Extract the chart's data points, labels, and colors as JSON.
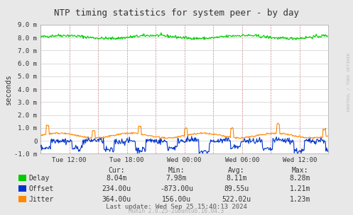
{
  "title": "NTP timing statistics for system peer - by day",
  "ylabel": "seconds",
  "background_color": "#e8e8e8",
  "plot_bg_color": "#ffffff",
  "ylim": [
    -1.0,
    9.0
  ],
  "yticks": [
    -1.0,
    0.0,
    1.0,
    2.0,
    3.0,
    4.0,
    5.0,
    6.0,
    7.0,
    8.0,
    9.0
  ],
  "ytick_labels": [
    "-1.0 m",
    "0",
    "1.0 m",
    "2.0 m",
    "3.0 m",
    "4.0 m",
    "5.0 m",
    "6.0 m",
    "7.0 m",
    "8.0 m",
    "9.0 m"
  ],
  "xtick_labels": [
    "Tue 12:00",
    "Tue 18:00",
    "Wed 00:00",
    "Wed 06:00",
    "Wed 12:00"
  ],
  "delay_color": "#00cc00",
  "offset_color": "#0033cc",
  "jitter_color": "#ff8800",
  "watermark": "RRDTOOL / TOBI OETIKER",
  "stats_header": [
    "Cur:",
    "Min:",
    "Avg:",
    "Max:"
  ],
  "delay_stats": [
    "8.04m",
    "7.98m",
    "8.11m",
    "8.28m"
  ],
  "offset_stats": [
    "234.00u",
    "-873.00u",
    "89.55u",
    "1.21m"
  ],
  "jitter_stats": [
    "364.00u",
    "156.00u",
    "522.02u",
    "1.23m"
  ],
  "last_update": "Last update: Wed Sep 25 15:40:13 2024",
  "munin_version": "Munin 2.0.25-2ubuntu0.16.04.3",
  "n_points": 500
}
